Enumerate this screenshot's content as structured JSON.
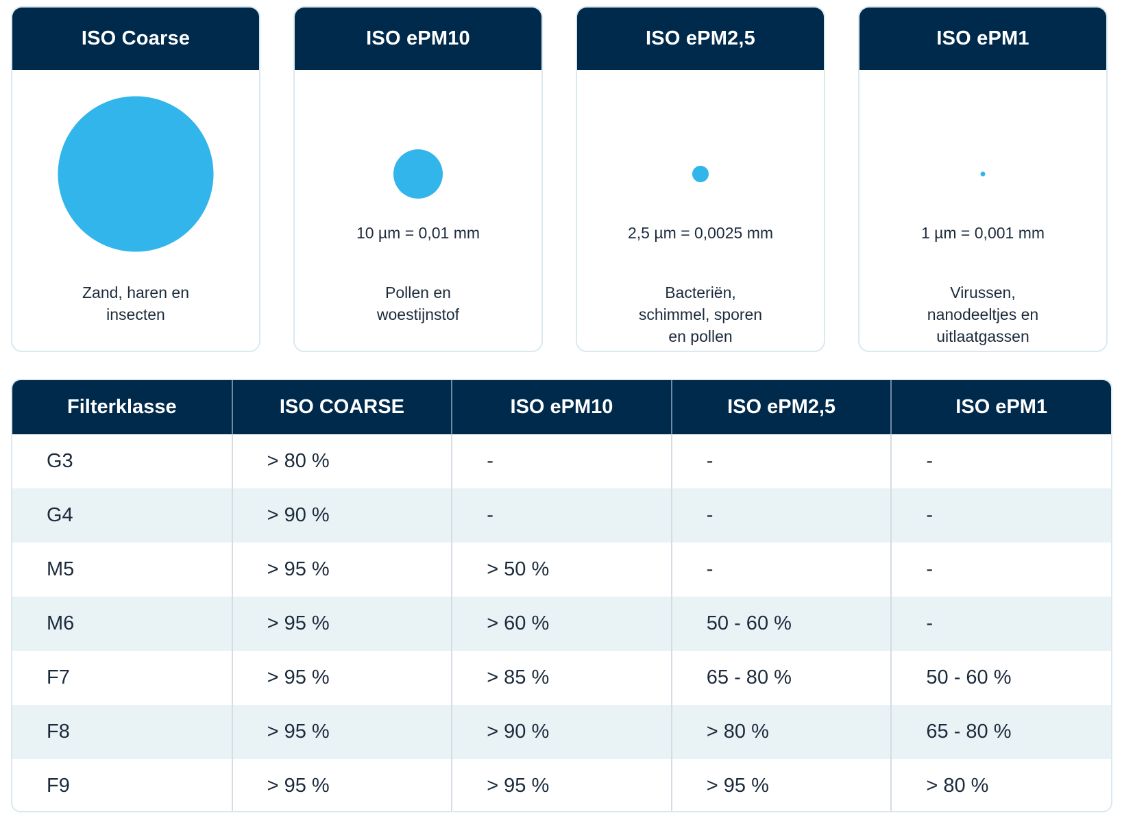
{
  "cards": [
    {
      "title": "ISO Coarse",
      "size_label": "",
      "description": "Zand, haren en\ninsecten",
      "particle_diameter_um": null
    },
    {
      "title": "ISO ePM10",
      "size_label": "10  µm = 0,01 mm",
      "description": "Pollen en\nwoestijnstof",
      "particle_diameter_um": 10
    },
    {
      "title": "ISO ePM2,5",
      "size_label": "2,5  µm = 0,0025 mm",
      "description": "Bacteriën,\nschimmel, sporen\nen pollen",
      "particle_diameter_um": 2.5
    },
    {
      "title": "ISO ePM1",
      "size_label": "1  µm = 0,001 mm",
      "description": "Virussen,\nnanodeeltjes en\nuitlaatgassen",
      "particle_diameter_um": 1
    }
  ],
  "table": {
    "headers": [
      "Filterklasse",
      "ISO COARSE",
      "ISO ePM10",
      "ISO ePM2,5",
      "ISO ePM1"
    ],
    "rows": [
      [
        "G3",
        "> 80 %",
        "-",
        "-",
        "-"
      ],
      [
        "G4",
        "> 90 %",
        "-",
        "-",
        "-"
      ],
      [
        "M5",
        "> 95 %",
        "> 50 %",
        "-",
        "-"
      ],
      [
        "M6",
        "> 95 %",
        "> 60 %",
        "50 - 60 %",
        "-"
      ],
      [
        "F7",
        "> 95 %",
        "> 85 %",
        "65 - 80 %",
        "50 - 60 %"
      ],
      [
        "F8",
        "> 95 %",
        "> 90 %",
        "> 80 %",
        "65 - 80 %"
      ],
      [
        "F9",
        "> 95 %",
        "> 95 %",
        "> 95 %",
        "> 80 %"
      ]
    ]
  },
  "colors": {
    "header_bg": "#002a4c",
    "particle": "#31b5ea",
    "row_alt": "#e9f2f5",
    "border": "#dbe9ef"
  }
}
